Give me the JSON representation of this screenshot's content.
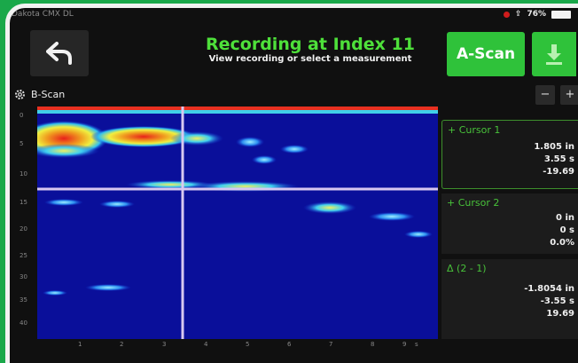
{
  "status": {
    "device": "Dakota CMX DL",
    "battery": "76%"
  },
  "header": {
    "title": "Recording at Index 11",
    "subtitle": "View recording or select a measurement",
    "ascan_label": "A-Scan"
  },
  "bscan": {
    "label": "B-Scan",
    "zoom_out": "−",
    "zoom_in": "+",
    "y_ticks": [
      "0",
      "5",
      "10",
      "15",
      "20",
      "25",
      "30",
      "35",
      "40"
    ],
    "x_ticks": [
      "1",
      "2",
      "3",
      "4",
      "5",
      "6",
      "7",
      "8",
      "9"
    ],
    "x_unit": "s"
  },
  "cursor1": {
    "title": "Cursor 1",
    "values": [
      "1.805 in",
      "3.55 s",
      "-19.69"
    ]
  },
  "cursor2": {
    "title": "Cursor 2",
    "values": [
      "0 in",
      "0 s",
      "0.0%"
    ]
  },
  "delta": {
    "title": "Δ (2 - 1)",
    "values": [
      "-1.8054 in",
      "-3.55 s",
      "19.69"
    ]
  },
  "colors": {
    "accent": "#2fc23a",
    "plot_bg": "#0a0f9a",
    "cursor_line": "#d8c8f0"
  }
}
